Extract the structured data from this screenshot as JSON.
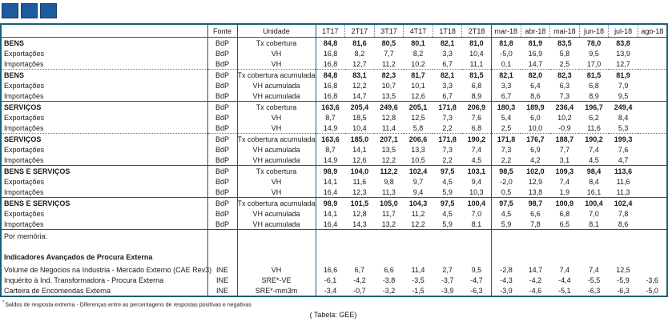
{
  "colors": {
    "line": "#1a5f78",
    "dot": "#4a7fae",
    "accent": "#1e5b9d",
    "accent_border": "#123e6e",
    "text": "#1a1a1a"
  },
  "logo": {
    "count": 3,
    "square_icon": "blue-square-icon"
  },
  "table": {
    "header": {
      "fonte": "Fonte",
      "unidade": "Unidade",
      "cols": [
        "1T17",
        "2T17",
        "3T17",
        "4T17",
        "1T18",
        "2T18",
        "mar-18",
        "abr-18",
        "mai-18",
        "jun-18",
        "jul-18",
        "ago-18"
      ]
    },
    "blocks": [
      {
        "divider": "dotted",
        "rows": [
          {
            "label": "BENS",
            "fonte": "BdP",
            "unidade": "Tx cobertura",
            "bold": true,
            "values": [
              "84,8",
              "81,6",
              "80,5",
              "80,1",
              "82,1",
              "81,0",
              "81,8",
              "81,9",
              "83,5",
              "78,0",
              "83,8",
              ""
            ]
          },
          {
            "label": "Exportações",
            "fonte": "BdP",
            "unidade": "VH",
            "values": [
              "16,8",
              "8,2",
              "7,7",
              "8,2",
              "3,3",
              "10,4",
              "-5,0",
              "16,9",
              "5,8",
              "9,5",
              "13,9",
              ""
            ]
          },
          {
            "label": "Importações",
            "fonte": "BdP",
            "unidade": "VH",
            "values": [
              "16,8",
              "12,7",
              "11,2",
              "10,2",
              "6,7",
              "11,1",
              "0,1",
              "14,7",
              "2,5",
              "17,0",
              "12,7",
              ""
            ]
          }
        ]
      },
      {
        "divider": "solid",
        "rows": [
          {
            "label": "BENS",
            "fonte": "BdP",
            "unidade": "Tx cobertura acumulada",
            "bold": true,
            "values": [
              "84,8",
              "83,1",
              "82,3",
              "81,7",
              "82,1",
              "81,5",
              "82,1",
              "82,0",
              "82,3",
              "81,5",
              "81,9",
              ""
            ]
          },
          {
            "label": "Exportações",
            "fonte": "BdP",
            "unidade": "VH acumulada",
            "values": [
              "16,8",
              "12,2",
              "10,7",
              "10,1",
              "3,3",
              "6,8",
              "3,3",
              "6,4",
              "6,3",
              "6,8",
              "7,9",
              ""
            ]
          },
          {
            "label": "Importações",
            "fonte": "BdP",
            "unidade": "VH acumulada",
            "values": [
              "16,8",
              "14,7",
              "13,5",
              "12,6",
              "6,7",
              "8,9",
              "6,7",
              "8,6",
              "7,3",
              "8,9",
              "9,5",
              ""
            ]
          }
        ]
      },
      {
        "divider": "dotted",
        "rows": [
          {
            "label": "SERVIÇOS",
            "fonte": "BdP",
            "unidade": "Tx cobertura",
            "bold": true,
            "values": [
              "163,6",
              "205,4",
              "249,6",
              "205,1",
              "171,8",
              "206,9",
              "180,3",
              "189,9",
              "236,4",
              "196,7",
              "249,4",
              ""
            ]
          },
          {
            "label": "Exportações",
            "fonte": "BdP",
            "unidade": "VH",
            "values": [
              "8,7",
              "18,5",
              "12,8",
              "12,5",
              "7,3",
              "7,6",
              "5,4",
              "6,0",
              "10,2",
              "6,2",
              "8,4",
              ""
            ]
          },
          {
            "label": "Importações",
            "fonte": "BdP",
            "unidade": "VH",
            "values": [
              "14,9",
              "10,4",
              "11,4",
              "5,8",
              "2,2",
              "6,8",
              "2,5",
              "10,0",
              "-0,9",
              "11,6",
              "5,3",
              ""
            ]
          }
        ]
      },
      {
        "divider": "solid",
        "rows": [
          {
            "label": "SERVIÇOS",
            "fonte": "BdP",
            "unidade": "Tx cobertura acumulada",
            "bold": true,
            "values": [
              "163,6",
              "185,0",
              "207,1",
              "206,6",
              "171,8",
              "190,2",
              "171,8",
              "176,7",
              "188,7",
              "190,2",
              "199,3",
              ""
            ]
          },
          {
            "label": "Exportações",
            "fonte": "BdP",
            "unidade": "VH acumulada",
            "values": [
              "8,7",
              "14,1",
              "13,5",
              "13,3",
              "7,3",
              "7,4",
              "7,3",
              "6,9",
              "7,7",
              "7,4",
              "7,6",
              ""
            ]
          },
          {
            "label": "Importações",
            "fonte": "BdP",
            "unidade": "VH acumulada",
            "values": [
              "14,9",
              "12,6",
              "12,2",
              "10,5",
              "2,2",
              "4,5",
              "2,2",
              "4,2",
              "3,1",
              "4,5",
              "4,7",
              ""
            ]
          }
        ]
      },
      {
        "divider": "solid",
        "rows": [
          {
            "label": "BENS E SERVIÇOS",
            "fonte": "BdP",
            "unidade": "Tx cobertura",
            "bold": true,
            "values": [
              "98,9",
              "104,0",
              "112,2",
              "102,4",
              "97,5",
              "103,1",
              "98,5",
              "102,0",
              "109,3",
              "98,4",
              "113,6",
              ""
            ]
          },
          {
            "label": "Exportações",
            "fonte": "BdP",
            "unidade": "VH",
            "values": [
              "14,1",
              "11,6",
              "9,8",
              "9,7",
              "4,5",
              "9,4",
              "-2,0",
              "12,9",
              "7,4",
              "8,4",
              "11,6",
              ""
            ]
          },
          {
            "label": "Importações",
            "fonte": "BdP",
            "unidade": "VH",
            "values": [
              "16,4",
              "12,3",
              "11,3",
              "9,4",
              "5,9",
              "10,3",
              "0,5",
              "13,8",
              "1,9",
              "16,1",
              "11,3",
              ""
            ]
          }
        ]
      },
      {
        "divider": "solid",
        "rows": [
          {
            "label": "BENS E SERVIÇOS",
            "fonte": "BdP",
            "unidade": "Tx cobertura acumulada",
            "bold": true,
            "values": [
              "98,9",
              "101,5",
              "105,0",
              "104,3",
              "97,5",
              "100,4",
              "97,5",
              "98,7",
              "100,9",
              "100,4",
              "102,4",
              ""
            ]
          },
          {
            "label": "Exportações",
            "fonte": "BdP",
            "unidade": "VH acumulada",
            "values": [
              "14,1",
              "12,8",
              "11,7",
              "11,2",
              "4,5",
              "7,0",
              "4,5",
              "6,6",
              "6,8",
              "7,0",
              "7,8",
              ""
            ]
          },
          {
            "label": "Importações",
            "fonte": "BdP",
            "unidade": "VH acumulada",
            "values": [
              "16,4",
              "14,3",
              "13,2",
              "12,2",
              "5,9",
              "8,1",
              "5,9",
              "7,8",
              "6,5",
              "8,1",
              "8,6",
              ""
            ]
          }
        ]
      },
      {
        "divider": "none",
        "rows": [
          {
            "label": "Por memória:",
            "fonte": "",
            "unidade": "",
            "style": "title",
            "values": [
              "",
              "",
              "",
              "",
              "",
              "",
              "",
              "",
              "",
              "",
              "",
              ""
            ]
          },
          {
            "label": "Indicadores Avançados de Procura Externa",
            "fonte": "",
            "unidade": "",
            "style": "subtitle",
            "values": [
              "",
              "",
              "",
              "",
              "",
              "",
              "",
              "",
              "",
              "",
              "",
              ""
            ]
          },
          {
            "label": "Volume de Negocios na Industria - Mercado Externo (CAE Rev3)",
            "fonte": "INE",
            "unidade": "VH",
            "values": [
              "16,6",
              "6,7",
              "6,6",
              "11,4",
              "2,7",
              "9,5",
              "-2,8",
              "14,7",
              "7,4",
              "7,4",
              "12,5",
              ""
            ]
          },
          {
            "label": "Inquérito à Ind. Transformadora - Procura Externa",
            "fonte": "INE",
            "unidade": "SRE*-VE",
            "values": [
              "-6,1",
              "-4,2",
              "-3,8",
              "-3,5",
              "-3,7",
              "-4,7",
              "-4,3",
              "-4,2",
              "-4,4",
              "-5,5",
              "-5,9",
              "-3,6"
            ]
          },
          {
            "label": "Carteira de Encomendas Externa",
            "fonte": "INE",
            "unidade": "SRE*-mm3m",
            "values": [
              "-3,4",
              "-0,7",
              "-3,2",
              "-1,5",
              "-3,9",
              "-6,3",
              "-3,9",
              "-4,6",
              "-5,1",
              "-6,3",
              "-6,3",
              "-5,0"
            ]
          }
        ]
      }
    ]
  },
  "footnote": {
    "marker": "*",
    "text": "Saldos de resposta extrema - Diferenças entre as percentagens de respostas positivas e negativas"
  },
  "caption": "( Tabela: GEE)"
}
